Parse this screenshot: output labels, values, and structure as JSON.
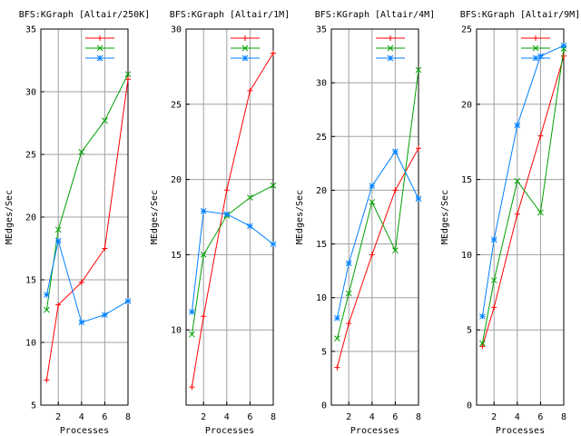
{
  "colors": {
    "background": "#ffffff",
    "frame": "#000000",
    "grid": "#a0a0a0",
    "series": [
      "#ff0000",
      "#00a000",
      "#0080ff"
    ]
  },
  "chart_data": [
    {
      "type": "line",
      "title": "BFS:KGraph [Altair/250K]",
      "xlabel": "Processes",
      "ylabel": "MEdges/Sec",
      "x": [
        1,
        2,
        4,
        6,
        8
      ],
      "xlim": [
        0.5,
        8
      ],
      "xticks": [
        2,
        4,
        6,
        8
      ],
      "ylim": [
        5,
        35
      ],
      "yticks": [
        5,
        10,
        15,
        20,
        25,
        30,
        35
      ],
      "grid": true,
      "legend": "top-right",
      "series": [
        {
          "color": "#ff0000",
          "marker": "plus",
          "values": [
            7.0,
            13.0,
            14.8,
            17.5,
            31.0
          ]
        },
        {
          "color": "#00a000",
          "marker": "cross",
          "values": [
            12.6,
            19.0,
            25.2,
            27.7,
            31.4
          ]
        },
        {
          "color": "#0080ff",
          "marker": "star",
          "values": [
            13.8,
            18.1,
            11.6,
            12.2,
            13.3
          ]
        }
      ]
    },
    {
      "type": "line",
      "title": "BFS:KGraph [Altair/1M]",
      "xlabel": "Processes",
      "ylabel": "MEdges/Sec",
      "x": [
        1,
        2,
        4,
        6,
        8
      ],
      "xlim": [
        0.5,
        8
      ],
      "xticks": [
        2,
        4,
        6,
        8
      ],
      "ylim": [
        5,
        30
      ],
      "yticks": [
        10,
        15,
        20,
        25,
        30
      ],
      "grid": true,
      "legend": "top-right",
      "series": [
        {
          "color": "#ff0000",
          "marker": "plus",
          "values": [
            6.2,
            10.9,
            19.3,
            25.9,
            28.4
          ]
        },
        {
          "color": "#00a000",
          "marker": "cross",
          "values": [
            9.7,
            15.0,
            17.6,
            18.8,
            19.6
          ]
        },
        {
          "color": "#0080ff",
          "marker": "star",
          "values": [
            11.2,
            17.9,
            17.7,
            16.9,
            15.7
          ]
        }
      ]
    },
    {
      "type": "line",
      "title": "BFS:KGraph [Altair/4M]",
      "xlabel": "Processes",
      "ylabel": "MEdges/Sec",
      "x": [
        1,
        2,
        4,
        6,
        8
      ],
      "xlim": [
        0.5,
        8
      ],
      "xticks": [
        2,
        4,
        6,
        8
      ],
      "ylim": [
        0,
        35
      ],
      "yticks": [
        0,
        5,
        10,
        15,
        20,
        25,
        30,
        35
      ],
      "grid": true,
      "legend": "top-right",
      "series": [
        {
          "color": "#ff0000",
          "marker": "plus",
          "values": [
            3.5,
            7.6,
            14.0,
            20.0,
            23.9
          ]
        },
        {
          "color": "#00a000",
          "marker": "cross",
          "values": [
            6.2,
            10.4,
            18.9,
            14.4,
            31.2
          ]
        },
        {
          "color": "#0080ff",
          "marker": "star",
          "values": [
            8.1,
            13.2,
            20.4,
            23.6,
            19.2
          ]
        }
      ]
    },
    {
      "type": "line",
      "title": "BFS:KGraph [Altair/9M]",
      "xlabel": "Processes",
      "ylabel": "MEdges/Sec",
      "x": [
        1,
        2,
        4,
        6,
        8
      ],
      "xlim": [
        0.5,
        8
      ],
      "xticks": [
        2,
        4,
        6,
        8
      ],
      "ylim": [
        0,
        25
      ],
      "yticks": [
        0,
        5,
        10,
        15,
        20,
        25
      ],
      "grid": true,
      "legend": "top-right",
      "series": [
        {
          "color": "#ff0000",
          "marker": "plus",
          "values": [
            3.9,
            6.5,
            12.7,
            17.9,
            23.2
          ]
        },
        {
          "color": "#00a000",
          "marker": "cross",
          "values": [
            4.1,
            8.3,
            14.9,
            12.8,
            23.7
          ]
        },
        {
          "color": "#0080ff",
          "marker": "star",
          "values": [
            5.9,
            11.0,
            18.6,
            23.2,
            23.9
          ]
        }
      ]
    }
  ]
}
